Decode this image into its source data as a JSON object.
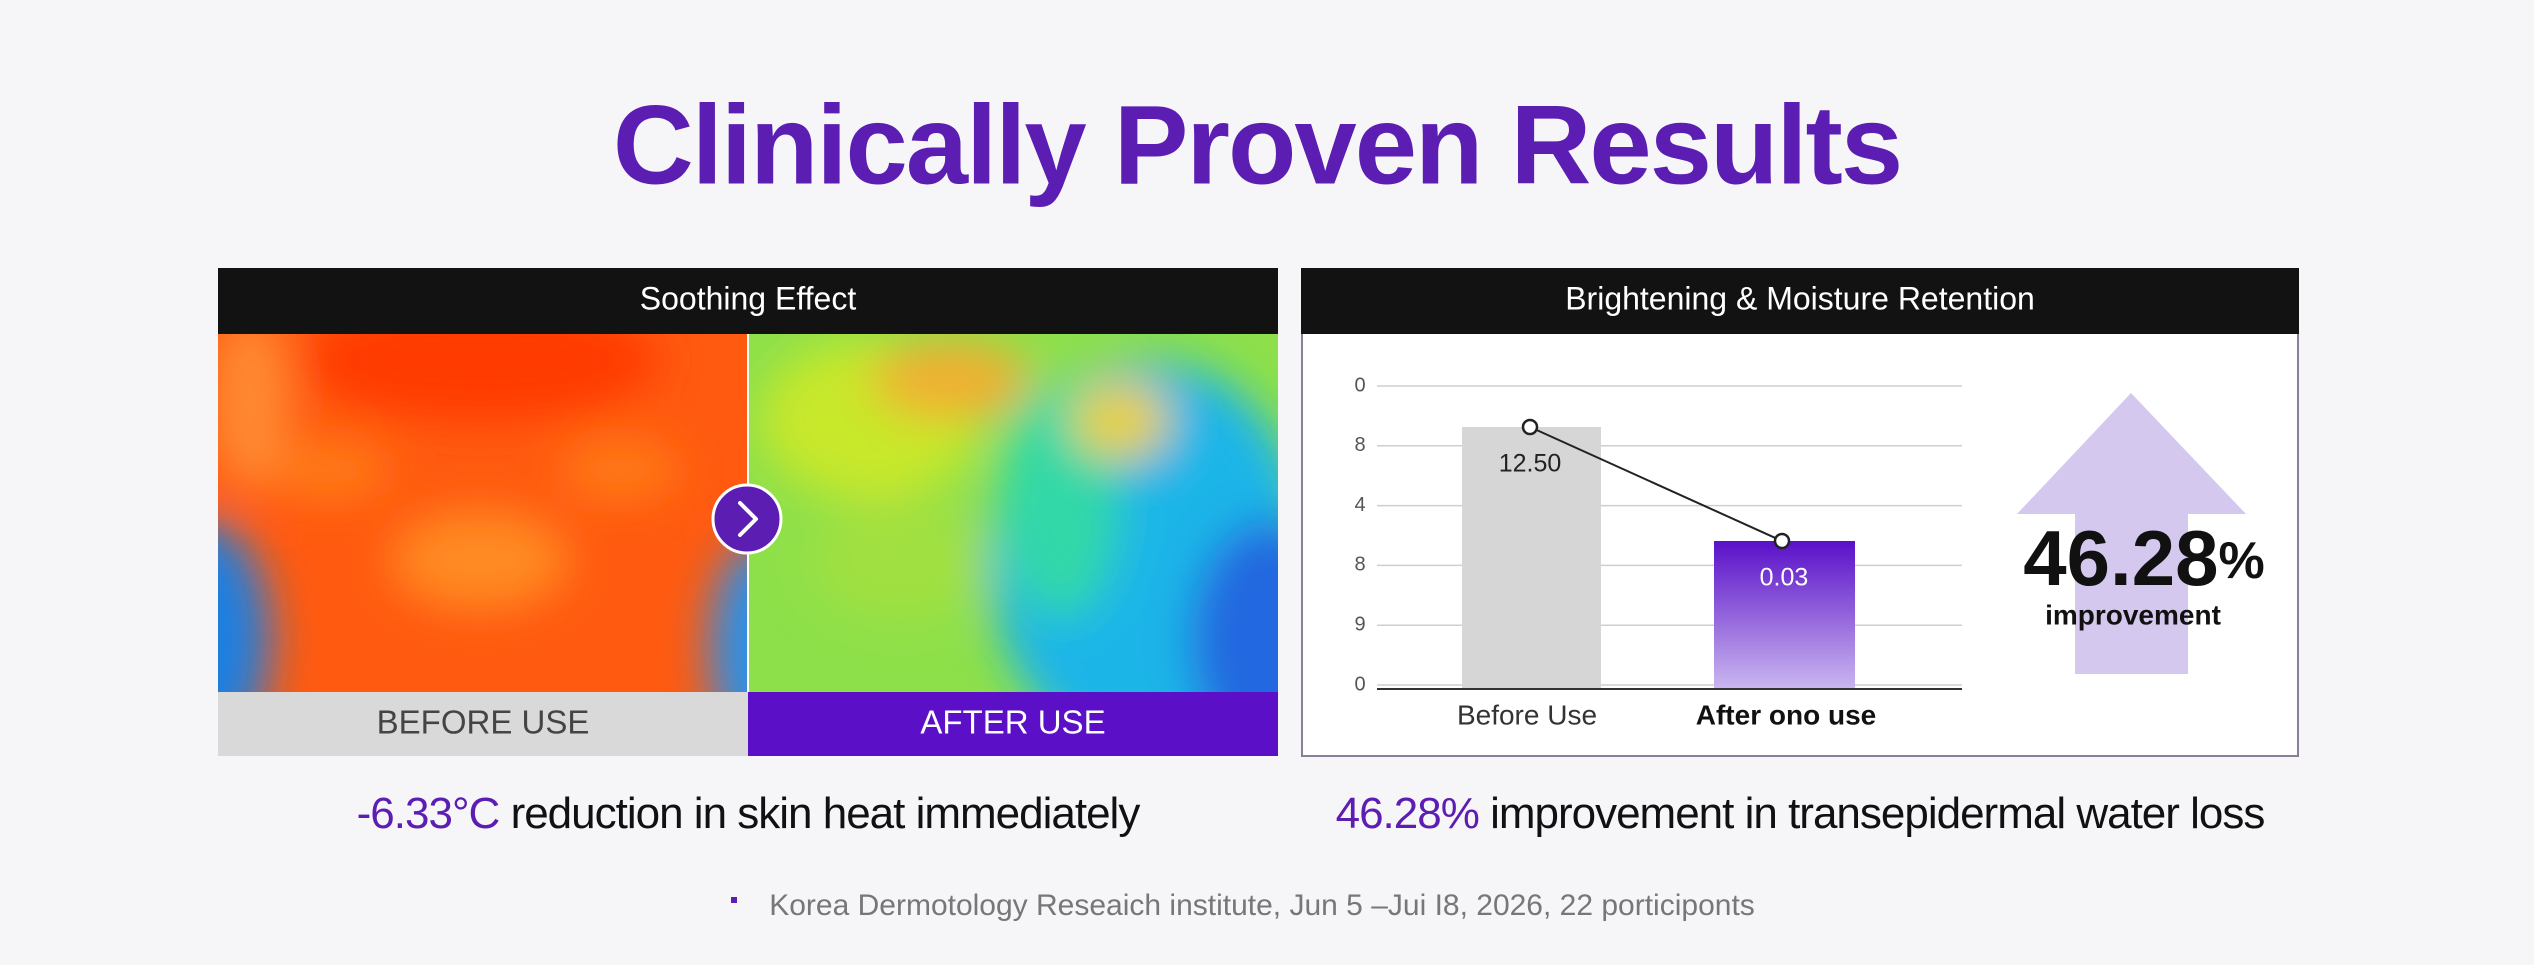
{
  "title": "Clinically Proven Results",
  "soothing": {
    "header": "Soothing Effect",
    "before_label": "BEFORE USE",
    "after_label": "AFTER USE",
    "caption_highlight": "-6.33°C",
    "caption_text": "reduction in skin heat immediately"
  },
  "brightening": {
    "header": "Brightening & Moisture Retention",
    "axis_labels": [
      "0",
      "8",
      "4",
      "8",
      "9",
      "0"
    ],
    "bar_labels": [
      "12.50",
      "0.03"
    ],
    "categories": [
      "Before Use",
      "After ono use"
    ],
    "stat_value": "46.28",
    "stat_unit": "%",
    "stat_label": "improvement",
    "caption_highlight": "46.28%",
    "caption_text": "improvement in transepidermal water loss"
  },
  "footnote": "Korea Dermotology Reseaich institute, Jun 5 –Jui I8, 2026, 22 porticiponts"
}
